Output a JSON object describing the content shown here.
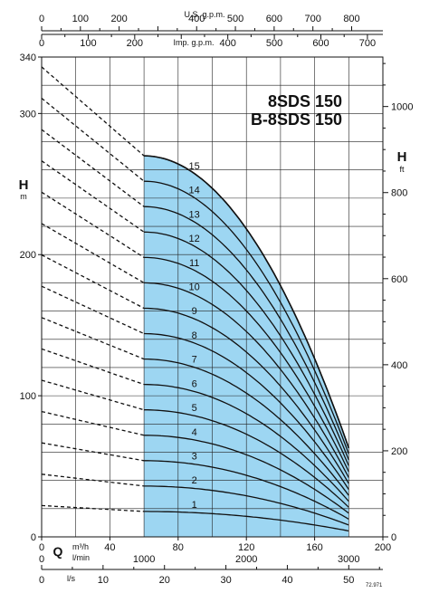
{
  "chart_data": {
    "type": "line",
    "title_lines": [
      "8SDS 150",
      "B-8SDS 150"
    ],
    "y_left": {
      "label": "H",
      "unit": "m",
      "range": [
        0,
        340
      ],
      "ticks": [
        0,
        100,
        200,
        300,
        340
      ]
    },
    "y_right": {
      "label": "H",
      "unit": "ft",
      "range": [
        0,
        1115
      ],
      "ticks": [
        0,
        200,
        400,
        600,
        800,
        1000
      ]
    },
    "x_main": {
      "label": "Q",
      "unit_top": "m³/h",
      "unit_bottom": "l/min",
      "range": [
        0,
        200
      ],
      "ticks": [
        0,
        40,
        80,
        120,
        160,
        200
      ],
      "lmin_ticks": [
        {
          "value": 1000,
          "q": 60
        },
        {
          "value": 2000,
          "q": 120
        },
        {
          "value": 3000,
          "q": 180
        }
      ]
    },
    "x_ls": {
      "unit": "l/s",
      "ticks": [
        0,
        10,
        20,
        30,
        40,
        50
      ],
      "q_per_unit": 3.6
    },
    "x_usgpm": {
      "label": "U.S. g.p.m.",
      "ticks": [
        0,
        100,
        200,
        300,
        400,
        500,
        600,
        700,
        800
      ],
      "q_per_unit": 0.22712
    },
    "x_impgpm": {
      "label": "Imp. g.p.m.",
      "ticks": [
        0,
        100,
        200,
        300,
        400,
        500,
        600,
        700
      ],
      "q_per_unit": 0.27277
    },
    "operating_range": [
      60,
      180
    ],
    "max_q": 180,
    "fill_color": "#9dd6f2",
    "stage_h0_per_stage": 22.2,
    "stage_h60_per_stage": 18.0,
    "stage_h180_per_stage": 4.2,
    "stages": [
      1,
      2,
      3,
      4,
      5,
      6,
      7,
      8,
      9,
      10,
      11,
      12,
      13,
      14,
      15
    ],
    "code": "72.971"
  }
}
